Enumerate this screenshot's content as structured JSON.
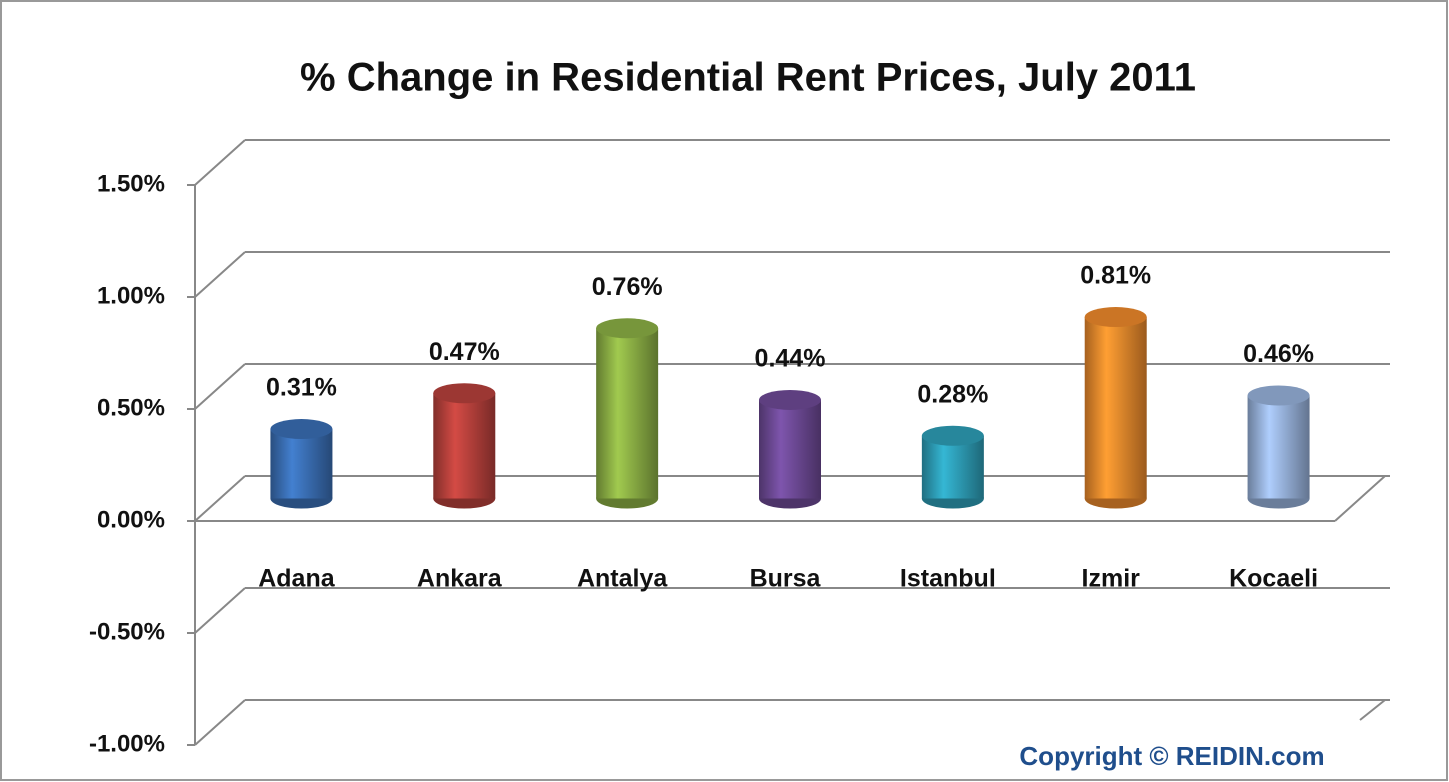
{
  "chart_data": {
    "type": "bar3d",
    "title": "% Change in Residential Rent Prices, July 2011",
    "categories": [
      "Adana",
      "Ankara",
      "Antalya",
      "Bursa",
      "Istanbul",
      "Izmir",
      "Kocaeli"
    ],
    "values": [
      0.31,
      0.47,
      0.76,
      0.44,
      0.28,
      0.81,
      0.46
    ],
    "value_labels": [
      "0.31%",
      "0.47%",
      "0.76%",
      "0.44%",
      "0.28%",
      "0.81%",
      "0.46%"
    ],
    "colors": [
      "#3a6fb5",
      "#b8413c",
      "#8cb045",
      "#6e4a96",
      "#2e9fb8",
      "#ef8a2c",
      "#98b3dc"
    ],
    "ylim": [
      -1,
      1.5
    ],
    "yticks": [
      {
        "value": 1.5,
        "label": "1.50%"
      },
      {
        "value": 1,
        "label": "1.00%"
      },
      {
        "value": 0.5,
        "label": "0.50%"
      },
      {
        "value": 0,
        "label": "0.00%"
      },
      {
        "value": -0.5,
        "label": "-0.50%"
      },
      {
        "value": -1,
        "label": "-1.00%"
      }
    ],
    "grid": true,
    "annotation": "Copyright © REIDIN.com"
  }
}
